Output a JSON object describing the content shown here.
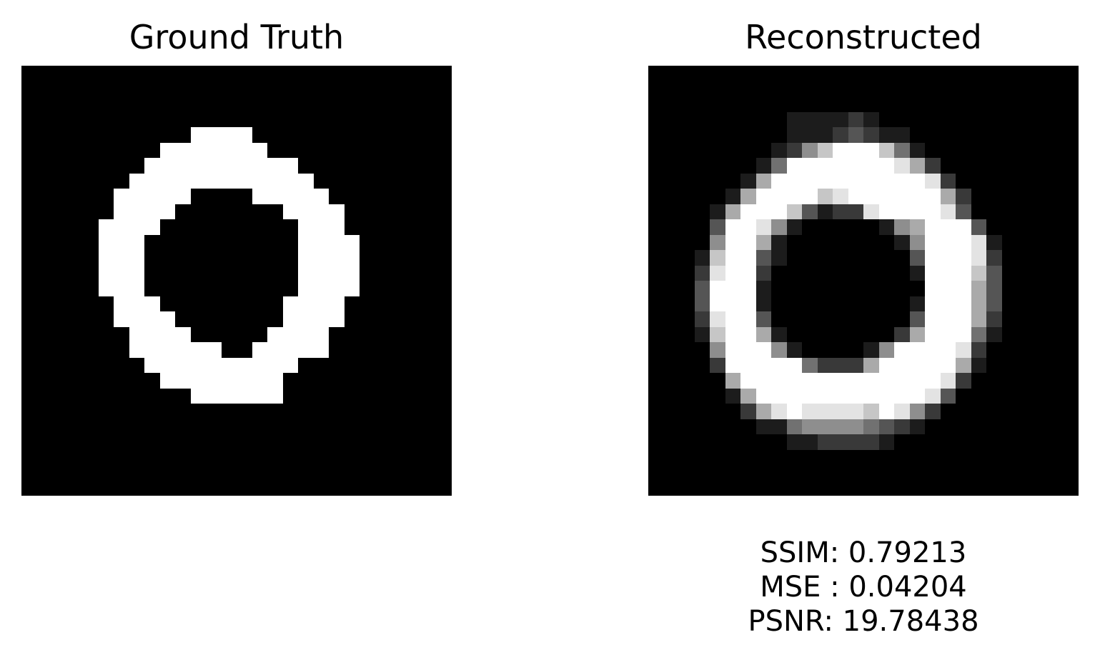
{
  "panels": {
    "left": {
      "title": "Ground Truth",
      "rows": [
        "                            ",
        "                            ",
        "                            ",
        "                            ",
        "           ####             ",
        "         #######            ",
        "        ##########          ",
        "       ############         ",
        "      #####    #####        ",
        "      ####       ####       ",
        "     ####         ###       ",
        "     ###          ####      ",
        "     ###          ####      ",
        "     ###          ####      ",
        "     ###          ####      ",
        "      ###        ####       ",
        "      ####       ####       ",
        "       ####     ####        ",
        "       ######  #####        ",
        "        ##########          ",
        "         ########           ",
        "           ######           ",
        "                            ",
        "                            ",
        "                            ",
        "                            ",
        "                            ",
        "                            "
      ]
    },
    "right": {
      "title": "Reconstructed",
      "rows": [
        "0000000000000000000000000000",
        "0000000000000000000000000000",
        "0000000000000000000000000000",
        "0000000001111210000000000000",
        "0000000001112321100000000000",
        "0000000012579997410000000000",
        "0000000149999999862000000000",
        "0000001699999999998200000000",
        "0000016999978999999620000000",
        "0000169997312289999830000000",
        "0000399851000001569993000000",
        "0000599610000000159998100000",
        "0001799310000000039998200000",
        "0002899200000000019997300000",
        "0003999100000000009996300000",
        "0003999100000000019996300000",
        "0002899300000000039996200000",
        "0001799610000000269994100000",
        "0000599951000015999982000000",
        "0000299999422269999961000000",
        "0000069999999999999820000000",
        "0000016999999999998300000000",
        "0000002689888879852000000000",
        "0000000114555543210000000000",
        "0000000001122221000000000000",
        "0000000000000000000000000000",
        "0000000000000000000000000000",
        "0000000000000000000000000000"
      ]
    }
  },
  "metrics": {
    "ssim": "SSIM: 0.79213",
    "mse": "MSE : 0.04204",
    "psnr": "PSNR: 19.78438"
  }
}
